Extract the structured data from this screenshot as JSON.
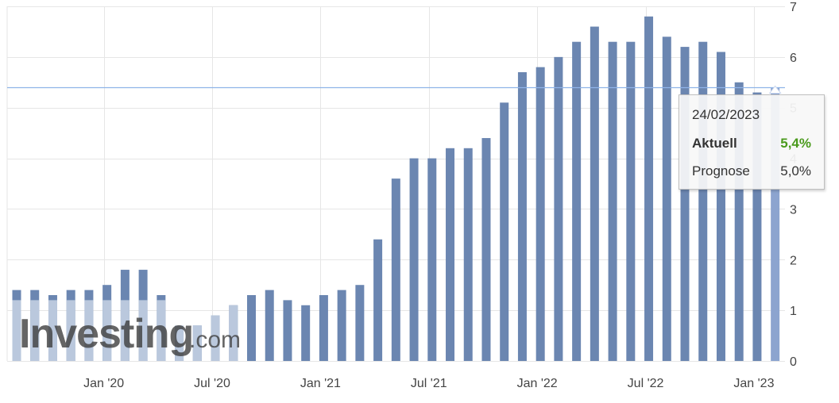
{
  "chart_data": {
    "type": "bar",
    "y_ticks": [
      "0",
      "1",
      "2",
      "3",
      "4",
      "5",
      "6",
      "7"
    ],
    "ylim": [
      0,
      7
    ],
    "x_tick_labels": [
      "Jan '20",
      "Jul '20",
      "Jan '21",
      "Jul '21",
      "Jan '22",
      "Jul '22",
      "Jan '23"
    ],
    "grid": true,
    "y_axis_position": "right",
    "reference_line": 5.4,
    "colors": {
      "bar_actual": "#6b86b1",
      "bar_forecast": "#bac8dd",
      "bar_highlight": "#8ca4cf",
      "reference_line": "#8fb4e8",
      "grid": "#e6e6e6"
    },
    "series": [
      {
        "values": [
          1.4,
          1.4,
          1.3,
          1.4,
          1.4,
          1.5,
          1.8,
          1.8,
          1.3,
          0.6,
          0.7,
          0.9,
          1.1,
          1.3,
          1.4,
          1.2,
          1.1,
          1.3,
          1.4,
          1.5,
          2.4,
          3.6,
          4.0,
          4.0,
          4.2,
          4.2,
          4.4,
          5.1,
          5.7,
          5.8,
          6.0,
          6.3,
          6.6,
          6.3,
          6.3,
          6.8,
          6.4,
          6.2,
          6.3,
          6.1,
          5.5,
          5.3,
          5.4
        ]
      },
      {
        "values": [
          1.2,
          1.2,
          1.2,
          1.2,
          1.2,
          1.2,
          1.2,
          1.2,
          1.2,
          0.7,
          0.7,
          0.9,
          1.1
        ]
      }
    ],
    "tooltip": {
      "date": "24/02/2023",
      "rows": [
        {
          "label": "Aktuell",
          "value": "5,4%"
        },
        {
          "label": "Prognose",
          "value": "5,0%"
        }
      ]
    },
    "watermark": {
      "brand": "Investing",
      "suffix": ".com"
    }
  }
}
